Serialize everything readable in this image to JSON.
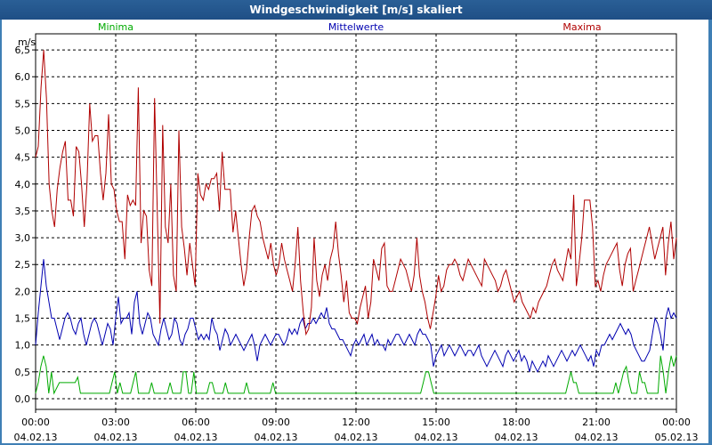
{
  "window": {
    "title": "Windgeschwindigkeit [m/s] skaliert"
  },
  "colors": {
    "min": "#00aa00",
    "mean": "#0000b0",
    "max": "#b00000",
    "grid": "#000000"
  },
  "chart_data": {
    "type": "line",
    "title": "Windgeschwindigkeit [m/s] skaliert",
    "ylabel": "m/s",
    "ylim": [
      -0.2,
      6.8
    ],
    "yticks": [
      0.0,
      0.5,
      1.0,
      1.5,
      2.0,
      2.5,
      3.0,
      3.5,
      4.0,
      4.5,
      5.0,
      5.5,
      6.0,
      6.5
    ],
    "ytick_labels": [
      "0,0",
      "0,5",
      "1,0",
      "1,5",
      "2,0",
      "2,5",
      "3,0",
      "3,5",
      "4,0",
      "4,5",
      "5,0",
      "5,5",
      "6,0",
      "6,5"
    ],
    "xlim_hours": [
      0,
      24
    ],
    "xticks": [
      {
        "h": 0,
        "time": "00:00",
        "date": "04.02.13"
      },
      {
        "h": 3,
        "time": "03:00",
        "date": "04.02.13"
      },
      {
        "h": 6,
        "time": "06:00",
        "date": "04.02.13"
      },
      {
        "h": 9,
        "time": "09:00",
        "date": "04.02.13"
      },
      {
        "h": 12,
        "time": "12:00",
        "date": "04.02.13"
      },
      {
        "h": 15,
        "time": "15:00",
        "date": "04.02.13"
      },
      {
        "h": 18,
        "time": "18:00",
        "date": "04.02.13"
      },
      {
        "h": 21,
        "time": "21:00",
        "date": "04.02.13"
      },
      {
        "h": 24,
        "time": "00:00",
        "date": "05.02.13"
      }
    ],
    "grid": true,
    "series": [
      {
        "name": "Minima",
        "values": [
          0.1,
          0.3,
          0.6,
          0.8,
          0.6,
          0.1,
          0.5,
          0.1,
          0.2,
          0.3,
          0.3,
          0.3,
          0.3,
          0.3,
          0.3,
          0.3,
          0.4,
          0.1,
          0.1,
          0.1,
          0.1,
          0.1,
          0.1,
          0.1,
          0.1,
          0.1,
          0.1,
          0.1,
          0.1,
          0.3,
          0.5,
          0.1,
          0.3,
          0.1,
          0.1,
          0.1,
          0.1,
          0.3,
          0.5,
          0.1,
          0.1,
          0.1,
          0.1,
          0.1,
          0.3,
          0.1,
          0.1,
          0.1,
          0.1,
          0.1,
          0.1,
          0.3,
          0.1,
          0.1,
          0.1,
          0.1,
          0.5,
          0.5,
          0.1,
          0.1,
          0.5,
          0.1,
          0.1,
          0.1,
          0.1,
          0.1,
          0.3,
          0.3,
          0.1,
          0.1,
          0.1,
          0.1,
          0.3,
          0.1,
          0.1,
          0.1,
          0.1,
          0.1,
          0.1,
          0.1,
          0.3,
          0.1,
          0.1,
          0.1,
          0.1,
          0.1,
          0.1,
          0.1,
          0.1,
          0.1,
          0.3,
          0.1,
          0.1,
          0.1,
          0.1,
          0.1,
          0.1,
          0.1,
          0.1,
          0.1,
          0.1,
          0.1,
          0.1,
          0.1,
          0.1,
          0.1,
          0.1,
          0.1,
          0.1,
          0.1,
          0.1,
          0.1,
          0.1,
          0.1,
          0.1,
          0.1,
          0.1,
          0.1,
          0.1,
          0.1,
          0.1,
          0.1,
          0.1,
          0.1,
          0.1,
          0.1,
          0.1,
          0.1,
          0.1,
          0.1,
          0.1,
          0.1,
          0.1,
          0.1,
          0.1,
          0.1,
          0.1,
          0.1,
          0.1,
          0.1,
          0.1,
          0.1,
          0.1,
          0.1,
          0.1,
          0.1,
          0.1,
          0.3,
          0.5,
          0.5,
          0.3,
          0.1,
          0.1,
          0.1,
          0.1,
          0.1,
          0.1,
          0.1,
          0.1,
          0.1,
          0.1,
          0.1,
          0.1,
          0.1,
          0.1,
          0.1,
          0.1,
          0.1,
          0.1,
          0.1,
          0.1,
          0.1,
          0.1,
          0.1,
          0.1,
          0.1,
          0.1,
          0.1,
          0.1,
          0.1,
          0.1,
          0.1,
          0.1,
          0.1,
          0.1,
          0.1,
          0.1,
          0.1,
          0.1,
          0.1,
          0.1,
          0.1,
          0.1,
          0.1,
          0.1,
          0.1,
          0.1,
          0.1,
          0.1,
          0.1,
          0.1,
          0.1,
          0.3,
          0.5,
          0.3,
          0.3,
          0.1,
          0.1,
          0.1,
          0.1,
          0.1,
          0.1,
          0.1,
          0.1,
          0.1,
          0.1,
          0.1,
          0.1,
          0.1,
          0.1,
          0.3,
          0.1,
          0.3,
          0.5,
          0.6,
          0.3,
          0.1,
          0.1,
          0.1,
          0.5,
          0.3,
          0.3,
          0.1,
          0.1,
          0.1,
          0.1,
          0.1,
          0.8,
          0.5,
          0.1,
          0.5,
          0.8,
          0.6,
          0.8
        ]
      },
      {
        "name": "Mittelwerte",
        "values": [
          1.0,
          1.6,
          2.1,
          2.6,
          2.1,
          1.8,
          1.5,
          1.5,
          1.3,
          1.1,
          1.3,
          1.5,
          1.6,
          1.5,
          1.3,
          1.2,
          1.4,
          1.5,
          1.2,
          1.0,
          1.2,
          1.4,
          1.5,
          1.4,
          1.2,
          1.0,
          1.2,
          1.4,
          1.3,
          1.0,
          1.5,
          1.9,
          1.4,
          1.5,
          1.5,
          1.6,
          1.2,
          1.8,
          2.0,
          1.4,
          1.2,
          1.4,
          1.6,
          1.5,
          1.2,
          1.1,
          1.0,
          1.3,
          1.5,
          1.3,
          1.1,
          1.2,
          1.5,
          1.4,
          1.1,
          1.0,
          1.2,
          1.3,
          1.5,
          1.5,
          1.3,
          1.1,
          1.2,
          1.1,
          1.2,
          1.1,
          1.5,
          1.3,
          1.2,
          0.9,
          1.1,
          1.3,
          1.2,
          1.0,
          1.1,
          1.2,
          1.1,
          1.0,
          0.9,
          1.0,
          1.1,
          1.2,
          1.0,
          0.7,
          1.0,
          1.1,
          1.2,
          1.1,
          1.0,
          1.1,
          1.2,
          1.2,
          1.1,
          1.0,
          1.1,
          1.3,
          1.2,
          1.3,
          1.2,
          1.4,
          1.5,
          1.3,
          1.4,
          1.4,
          1.5,
          1.4,
          1.5,
          1.6,
          1.5,
          1.7,
          1.4,
          1.3,
          1.3,
          1.2,
          1.1,
          1.1,
          1.0,
          0.9,
          0.8,
          1.0,
          1.1,
          1.0,
          1.1,
          1.2,
          1.0,
          1.1,
          1.2,
          1.0,
          1.1,
          1.0,
          1.0,
          0.9,
          1.1,
          1.0,
          1.1,
          1.2,
          1.2,
          1.1,
          1.0,
          1.1,
          1.2,
          1.1,
          1.0,
          1.2,
          1.3,
          1.2,
          1.2,
          1.1,
          1.0,
          0.6,
          0.8,
          0.9,
          1.0,
          0.8,
          0.9,
          1.0,
          0.9,
          0.8,
          0.9,
          1.0,
          0.9,
          0.8,
          0.9,
          0.9,
          0.8,
          0.9,
          1.0,
          0.8,
          0.7,
          0.6,
          0.7,
          0.8,
          0.9,
          0.8,
          0.7,
          0.6,
          0.8,
          0.9,
          0.8,
          0.7,
          0.8,
          0.9,
          0.7,
          0.8,
          0.7,
          0.5,
          0.7,
          0.6,
          0.5,
          0.6,
          0.7,
          0.6,
          0.8,
          0.7,
          0.6,
          0.7,
          0.8,
          0.9,
          0.8,
          0.7,
          0.8,
          0.9,
          0.8,
          0.9,
          1.0,
          0.9,
          0.8,
          0.7,
          0.8,
          0.6,
          0.9,
          0.8,
          1.0,
          1.0,
          1.1,
          1.2,
          1.1,
          1.2,
          1.3,
          1.4,
          1.3,
          1.2,
          1.3,
          1.2,
          1.0,
          0.9,
          0.8,
          0.7,
          0.7,
          0.8,
          0.9,
          1.2,
          1.5,
          1.4,
          1.2,
          0.9,
          1.5,
          1.7,
          1.5,
          1.6,
          1.5
        ]
      },
      {
        "name": "Maxima",
        "values": [
          4.5,
          4.7,
          5.8,
          6.5,
          5.6,
          4.0,
          3.5,
          3.2,
          3.9,
          4.3,
          4.6,
          4.8,
          3.7,
          3.7,
          3.4,
          4.7,
          4.6,
          4.0,
          3.2,
          4.0,
          5.5,
          4.8,
          4.9,
          4.9,
          4.2,
          3.7,
          4.2,
          5.3,
          4.0,
          3.9,
          3.5,
          3.3,
          3.3,
          2.6,
          3.8,
          3.6,
          3.7,
          3.6,
          5.8,
          2.9,
          3.5,
          3.4,
          2.4,
          2.1,
          5.6,
          3.5,
          1.4,
          5.1,
          3.2,
          2.9,
          4.0,
          2.3,
          2.0,
          5.0,
          3.2,
          2.8,
          2.3,
          2.9,
          2.5,
          2.1,
          4.2,
          3.8,
          3.7,
          4.0,
          3.9,
          4.1,
          4.1,
          4.2,
          3.5,
          4.6,
          3.9,
          3.9,
          3.9,
          3.1,
          3.5,
          3.0,
          2.5,
          2.1,
          2.4,
          3.0,
          3.5,
          3.6,
          3.4,
          3.3,
          3.0,
          2.8,
          2.6,
          2.9,
          2.5,
          2.3,
          2.5,
          2.9,
          2.6,
          2.4,
          2.2,
          2.0,
          2.5,
          3.2,
          2.2,
          1.6,
          1.2,
          1.3,
          1.7,
          3.0,
          2.2,
          1.9,
          2.3,
          2.5,
          2.2,
          2.6,
          2.8,
          3.3,
          2.7,
          2.3,
          1.8,
          2.2,
          1.6,
          1.5,
          1.5,
          1.4,
          1.7,
          1.9,
          2.1,
          1.5,
          1.8,
          2.6,
          2.4,
          2.2,
          2.8,
          2.9,
          2.1,
          2.0,
          2.0,
          2.2,
          2.4,
          2.6,
          2.5,
          2.4,
          2.2,
          2.0,
          2.3,
          3.0,
          2.3,
          2.0,
          1.8,
          1.5,
          1.3,
          1.6,
          1.9,
          2.3,
          2.0,
          2.1,
          2.4,
          2.5,
          2.5,
          2.6,
          2.5,
          2.3,
          2.2,
          2.4,
          2.6,
          2.5,
          2.4,
          2.3,
          2.2,
          2.1,
          2.6,
          2.5,
          2.4,
          2.3,
          2.2,
          2.0,
          2.1,
          2.3,
          2.4,
          2.2,
          2.0,
          1.8,
          1.9,
          2.0,
          1.8,
          1.7,
          1.6,
          1.5,
          1.7,
          1.6,
          1.8,
          1.9,
          2.0,
          2.1,
          2.3,
          2.5,
          2.6,
          2.4,
          2.3,
          2.2,
          2.5,
          2.8,
          2.6,
          3.8,
          2.1,
          2.5,
          3.0,
          3.7,
          3.7,
          3.7,
          3.2,
          2.1,
          2.2,
          2.0,
          2.3,
          2.5,
          2.6,
          2.7,
          2.8,
          2.9,
          2.4,
          2.1,
          2.5,
          2.7,
          2.8,
          2.0,
          2.2,
          2.4,
          2.6,
          2.8,
          3.0,
          3.2,
          2.9,
          2.6,
          2.8,
          3.0,
          3.2,
          2.3,
          2.9,
          3.3,
          2.6,
          3.0
        ]
      }
    ]
  }
}
